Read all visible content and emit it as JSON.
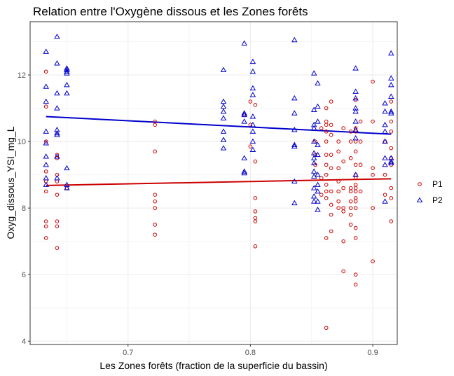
{
  "chart_data": {
    "type": "scatter",
    "title": "Relation entre l'Oxygène dissous et les Zones forêts",
    "xlabel": "Les Zones forêts (fraction de la superficie du bassin)",
    "ylabel": "Oxyg_dissous_YSI_mg_L",
    "xlim": [
      0.62,
      0.92
    ],
    "ylim": [
      3.9,
      13.6
    ],
    "xticks": [
      0.7,
      0.8,
      0.9
    ],
    "xtick_labels": [
      "0.7",
      "0.8",
      "0.9"
    ],
    "yticks": [
      4,
      6,
      8,
      10,
      12
    ],
    "ytick_labels": [
      "4",
      "6",
      "8",
      "10",
      "12"
    ],
    "grid": true,
    "legend_position": "right",
    "series": [
      {
        "name": "P1",
        "color": "#cc0000",
        "marker": "circle",
        "trend": [
          [
            0.633,
            8.68
          ],
          [
            0.915,
            8.88
          ]
        ],
        "points": [
          [
            0.633,
            12.1
          ],
          [
            0.633,
            11.05
          ],
          [
            0.633,
            10.0
          ],
          [
            0.633,
            9.1
          ],
          [
            0.633,
            8.8
          ],
          [
            0.633,
            8.5
          ],
          [
            0.633,
            7.6
          ],
          [
            0.633,
            7.45
          ],
          [
            0.633,
            7.1
          ],
          [
            0.642,
            9.6
          ],
          [
            0.642,
            9.5
          ],
          [
            0.642,
            9.0
          ],
          [
            0.642,
            8.8
          ],
          [
            0.642,
            8.4
          ],
          [
            0.642,
            7.6
          ],
          [
            0.642,
            7.45
          ],
          [
            0.642,
            6.8
          ],
          [
            0.65,
            8.6
          ],
          [
            0.722,
            10.6
          ],
          [
            0.722,
            10.5
          ],
          [
            0.722,
            9.7
          ],
          [
            0.722,
            8.4
          ],
          [
            0.722,
            8.2
          ],
          [
            0.722,
            8.0
          ],
          [
            0.722,
            7.5
          ],
          [
            0.722,
            7.2
          ],
          [
            0.795,
            10.8
          ],
          [
            0.8,
            11.2
          ],
          [
            0.8,
            10.5
          ],
          [
            0.8,
            9.85
          ],
          [
            0.804,
            11.1
          ],
          [
            0.804,
            9.4
          ],
          [
            0.804,
            8.3
          ],
          [
            0.804,
            7.9
          ],
          [
            0.804,
            7.7
          ],
          [
            0.804,
            7.6
          ],
          [
            0.804,
            6.85
          ],
          [
            0.853,
            10.0
          ],
          [
            0.853,
            9.6
          ],
          [
            0.853,
            9.3
          ],
          [
            0.858,
            10.4
          ],
          [
            0.858,
            8.9
          ],
          [
            0.858,
            8.4
          ],
          [
            0.862,
            11.0
          ],
          [
            0.862,
            10.6
          ],
          [
            0.862,
            10.5
          ],
          [
            0.862,
            10.3
          ],
          [
            0.862,
            10.0
          ],
          [
            0.862,
            9.6
          ],
          [
            0.862,
            9.3
          ],
          [
            0.862,
            9.0
          ],
          [
            0.862,
            8.7
          ],
          [
            0.862,
            8.5
          ],
          [
            0.862,
            8.3
          ],
          [
            0.862,
            7.1
          ],
          [
            0.862,
            4.4
          ],
          [
            0.866,
            11.2
          ],
          [
            0.866,
            10.5
          ],
          [
            0.866,
            10.2
          ],
          [
            0.866,
            9.6
          ],
          [
            0.866,
            9.2
          ],
          [
            0.866,
            8.5
          ],
          [
            0.866,
            8.1
          ],
          [
            0.866,
            7.8
          ],
          [
            0.866,
            7.3
          ],
          [
            0.872,
            10.0
          ],
          [
            0.872,
            9.7
          ],
          [
            0.872,
            9.2
          ],
          [
            0.872,
            8.8
          ],
          [
            0.872,
            8.5
          ],
          [
            0.872,
            8.2
          ],
          [
            0.872,
            8.0
          ],
          [
            0.876,
            10.4
          ],
          [
            0.876,
            9.4
          ],
          [
            0.876,
            8.6
          ],
          [
            0.876,
            8.0
          ],
          [
            0.876,
            7.9
          ],
          [
            0.876,
            7.0
          ],
          [
            0.876,
            6.1
          ],
          [
            0.882,
            10.3
          ],
          [
            0.882,
            10.0
          ],
          [
            0.882,
            9.5
          ],
          [
            0.882,
            8.6
          ],
          [
            0.882,
            8.5
          ],
          [
            0.882,
            8.2
          ],
          [
            0.882,
            8.0
          ],
          [
            0.882,
            7.8
          ],
          [
            0.882,
            7.5
          ],
          [
            0.886,
            11.25
          ],
          [
            0.886,
            10.4
          ],
          [
            0.886,
            10.3
          ],
          [
            0.886,
            10.0
          ],
          [
            0.886,
            9.7
          ],
          [
            0.886,
            9.3
          ],
          [
            0.886,
            9.0
          ],
          [
            0.886,
            8.9
          ],
          [
            0.886,
            8.7
          ],
          [
            0.886,
            8.6
          ],
          [
            0.886,
            8.5
          ],
          [
            0.886,
            8.3
          ],
          [
            0.886,
            8.2
          ],
          [
            0.886,
            8.0
          ],
          [
            0.886,
            7.4
          ],
          [
            0.886,
            7.1
          ],
          [
            0.886,
            6.0
          ],
          [
            0.886,
            5.7
          ],
          [
            0.89,
            10.6
          ],
          [
            0.89,
            10.0
          ],
          [
            0.89,
            9.3
          ],
          [
            0.89,
            8.5
          ],
          [
            0.9,
            11.8
          ],
          [
            0.9,
            10.6
          ],
          [
            0.9,
            9.2
          ],
          [
            0.9,
            9.0
          ],
          [
            0.9,
            8.0
          ],
          [
            0.9,
            6.4
          ],
          [
            0.91,
            10.0
          ],
          [
            0.91,
            9.0
          ],
          [
            0.91,
            8.4
          ],
          [
            0.915,
            11.2
          ],
          [
            0.915,
            10.6
          ],
          [
            0.915,
            10.3
          ],
          [
            0.915,
            9.8
          ],
          [
            0.915,
            9.5
          ],
          [
            0.915,
            9.3
          ],
          [
            0.915,
            8.6
          ],
          [
            0.915,
            8.3
          ],
          [
            0.915,
            7.6
          ]
        ]
      },
      {
        "name": "P2",
        "color": "#0000cc",
        "marker": "triangle",
        "trend": [
          [
            0.633,
            10.75
          ],
          [
            0.915,
            10.22
          ]
        ],
        "points": [
          [
            0.633,
            12.7
          ],
          [
            0.633,
            11.65
          ],
          [
            0.633,
            11.2
          ],
          [
            0.633,
            10.3
          ],
          [
            0.633,
            9.95
          ],
          [
            0.633,
            9.55
          ],
          [
            0.633,
            9.3
          ],
          [
            0.633,
            8.9
          ],
          [
            0.633,
            8.7
          ],
          [
            0.642,
            13.15
          ],
          [
            0.642,
            12.35
          ],
          [
            0.642,
            11.45
          ],
          [
            0.642,
            11.0
          ],
          [
            0.642,
            10.35
          ],
          [
            0.642,
            10.25
          ],
          [
            0.642,
            10.2
          ],
          [
            0.642,
            9.55
          ],
          [
            0.642,
            8.9
          ],
          [
            0.65,
            12.2
          ],
          [
            0.65,
            12.15
          ],
          [
            0.65,
            12.1
          ],
          [
            0.65,
            12.05
          ],
          [
            0.65,
            11.7
          ],
          [
            0.65,
            11.45
          ],
          [
            0.65,
            9.2
          ],
          [
            0.65,
            8.7
          ],
          [
            0.65,
            8.6
          ],
          [
            0.778,
            12.15
          ],
          [
            0.778,
            11.2
          ],
          [
            0.778,
            11.05
          ],
          [
            0.778,
            10.9
          ],
          [
            0.778,
            10.7
          ],
          [
            0.778,
            10.3
          ],
          [
            0.778,
            10.05
          ],
          [
            0.778,
            9.8
          ],
          [
            0.795,
            12.95
          ],
          [
            0.795,
            10.85
          ],
          [
            0.795,
            10.8
          ],
          [
            0.795,
            10.6
          ],
          [
            0.795,
            9.5
          ],
          [
            0.795,
            9.1
          ],
          [
            0.795,
            9.05
          ],
          [
            0.802,
            12.4
          ],
          [
            0.802,
            12.1
          ],
          [
            0.802,
            11.6
          ],
          [
            0.802,
            11.4
          ],
          [
            0.802,
            10.75
          ],
          [
            0.802,
            10.5
          ],
          [
            0.802,
            10.3
          ],
          [
            0.802,
            10.0
          ],
          [
            0.802,
            9.75
          ],
          [
            0.836,
            13.05
          ],
          [
            0.836,
            11.3
          ],
          [
            0.836,
            10.85
          ],
          [
            0.836,
            10.35
          ],
          [
            0.836,
            9.9
          ],
          [
            0.836,
            9.85
          ],
          [
            0.836,
            8.8
          ],
          [
            0.836,
            8.15
          ],
          [
            0.852,
            12.05
          ],
          [
            0.852,
            10.95
          ],
          [
            0.852,
            10.5
          ],
          [
            0.852,
            10.4
          ],
          [
            0.852,
            10.0
          ],
          [
            0.852,
            9.65
          ],
          [
            0.852,
            9.5
          ],
          [
            0.852,
            9.35
          ],
          [
            0.852,
            9.1
          ],
          [
            0.852,
            8.95
          ],
          [
            0.852,
            8.6
          ],
          [
            0.852,
            8.35
          ],
          [
            0.852,
            8.2
          ],
          [
            0.855,
            11.75
          ],
          [
            0.855,
            11.05
          ],
          [
            0.855,
            10.6
          ],
          [
            0.855,
            9.9
          ],
          [
            0.855,
            9.6
          ],
          [
            0.855,
            9.0
          ],
          [
            0.855,
            8.7
          ],
          [
            0.855,
            8.5
          ],
          [
            0.855,
            8.2
          ],
          [
            0.855,
            7.95
          ],
          [
            0.886,
            12.2
          ],
          [
            0.886,
            11.5
          ],
          [
            0.886,
            11.3
          ],
          [
            0.886,
            11.0
          ],
          [
            0.886,
            10.9
          ],
          [
            0.886,
            10.6
          ],
          [
            0.886,
            10.35
          ],
          [
            0.886,
            10.1
          ],
          [
            0.886,
            9.0
          ],
          [
            0.91,
            11.15
          ],
          [
            0.91,
            10.9
          ],
          [
            0.91,
            10.5
          ],
          [
            0.91,
            10.3
          ],
          [
            0.91,
            10.0
          ],
          [
            0.91,
            9.5
          ],
          [
            0.91,
            9.3
          ],
          [
            0.91,
            8.2
          ],
          [
            0.915,
            12.65
          ],
          [
            0.915,
            11.9
          ],
          [
            0.915,
            11.7
          ],
          [
            0.915,
            11.35
          ],
          [
            0.915,
            10.9
          ],
          [
            0.915,
            10.85
          ],
          [
            0.915,
            9.5
          ],
          [
            0.915,
            9.4
          ],
          [
            0.915,
            9.35
          ]
        ]
      }
    ]
  }
}
